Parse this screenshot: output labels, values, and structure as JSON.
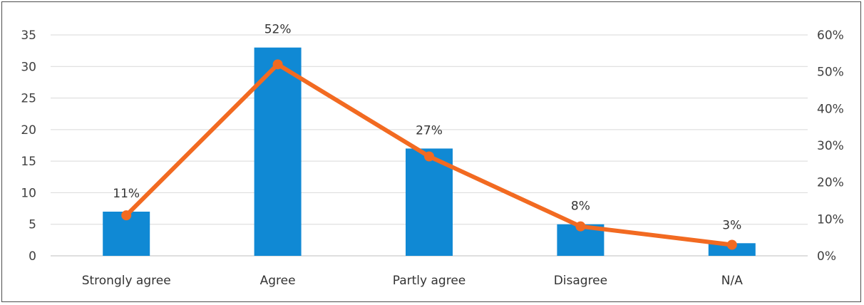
{
  "chart_data": {
    "type": "bar+line",
    "categories": [
      "Strongly agree",
      "Agree",
      "Partly agree",
      "Disagree",
      "N/A"
    ],
    "series": [
      {
        "type": "bar",
        "axis": "left",
        "color": "#1089d4",
        "values": [
          7,
          33,
          17,
          5,
          2
        ]
      },
      {
        "type": "line",
        "axis": "right",
        "color": "#f26a21",
        "values": [
          11,
          52,
          27,
          8,
          3
        ],
        "labels": [
          "11%",
          "52%",
          "27%",
          "8%",
          "3%"
        ]
      }
    ],
    "y_left": {
      "min": 0,
      "max": 35,
      "ticks": [
        "0",
        "5",
        "10",
        "15",
        "20",
        "25",
        "30",
        "35"
      ]
    },
    "y_right": {
      "min": 0,
      "max": 60,
      "ticks": [
        "0%",
        "10%",
        "20%",
        "30%",
        "40%",
        "50%",
        "60%"
      ]
    },
    "grid": true,
    "gridline_color": "#d9d9d9",
    "legend": "none"
  }
}
